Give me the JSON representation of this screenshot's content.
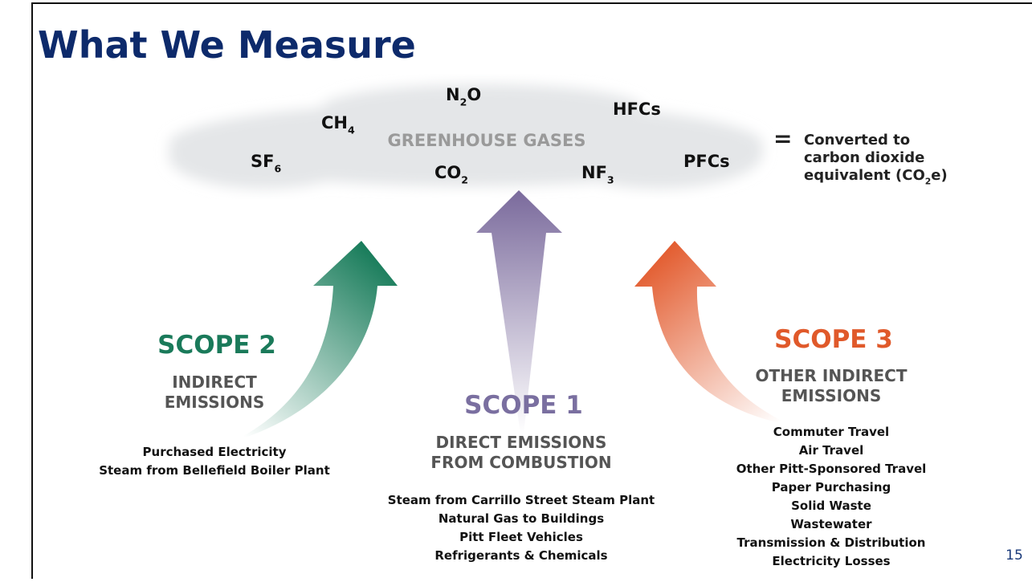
{
  "title": "What We Measure",
  "cloud_label": "GREENHOUSE GASES",
  "gases": [
    [
      "N",
      "2",
      "O"
    ],
    [
      "CH",
      "4"
    ],
    [
      "HFCs"
    ],
    [
      "SF",
      "6"
    ],
    [
      "CO",
      "2"
    ],
    [
      "NF",
      "3"
    ],
    [
      "PFCs"
    ]
  ],
  "equals": "=",
  "conversion": [
    [
      "Converted to"
    ],
    [
      "carbon dioxide"
    ],
    [
      "equivalent (CO",
      "2",
      "e)"
    ]
  ],
  "scopes": [
    {
      "title": "SCOPE 2",
      "subtitle": [
        "INDIRECT",
        "EMISSIONS"
      ],
      "items": [
        "Purchased Electricity",
        "Steam from Bellefield Boiler Plant"
      ]
    },
    {
      "title": "SCOPE 1",
      "subtitle": [
        "DIRECT EMISSIONS",
        "FROM COMBUSTION"
      ],
      "items": [
        "Steam from Carrillo Street Steam Plant",
        "Natural Gas to Buildings",
        "Pitt Fleet Vehicles",
        "Refrigerants & Chemicals"
      ]
    },
    {
      "title": "SCOPE 3",
      "subtitle": [
        "OTHER INDIRECT",
        "EMISSIONS"
      ],
      "items": [
        "Commuter Travel",
        "Air Travel",
        "Other Pitt-Sponsored Travel",
        "Paper Purchasing",
        "Solid Waste",
        "Wastewater",
        "Transmission & Distribution",
        "Electricity Losses"
      ]
    }
  ],
  "page_number": "15"
}
